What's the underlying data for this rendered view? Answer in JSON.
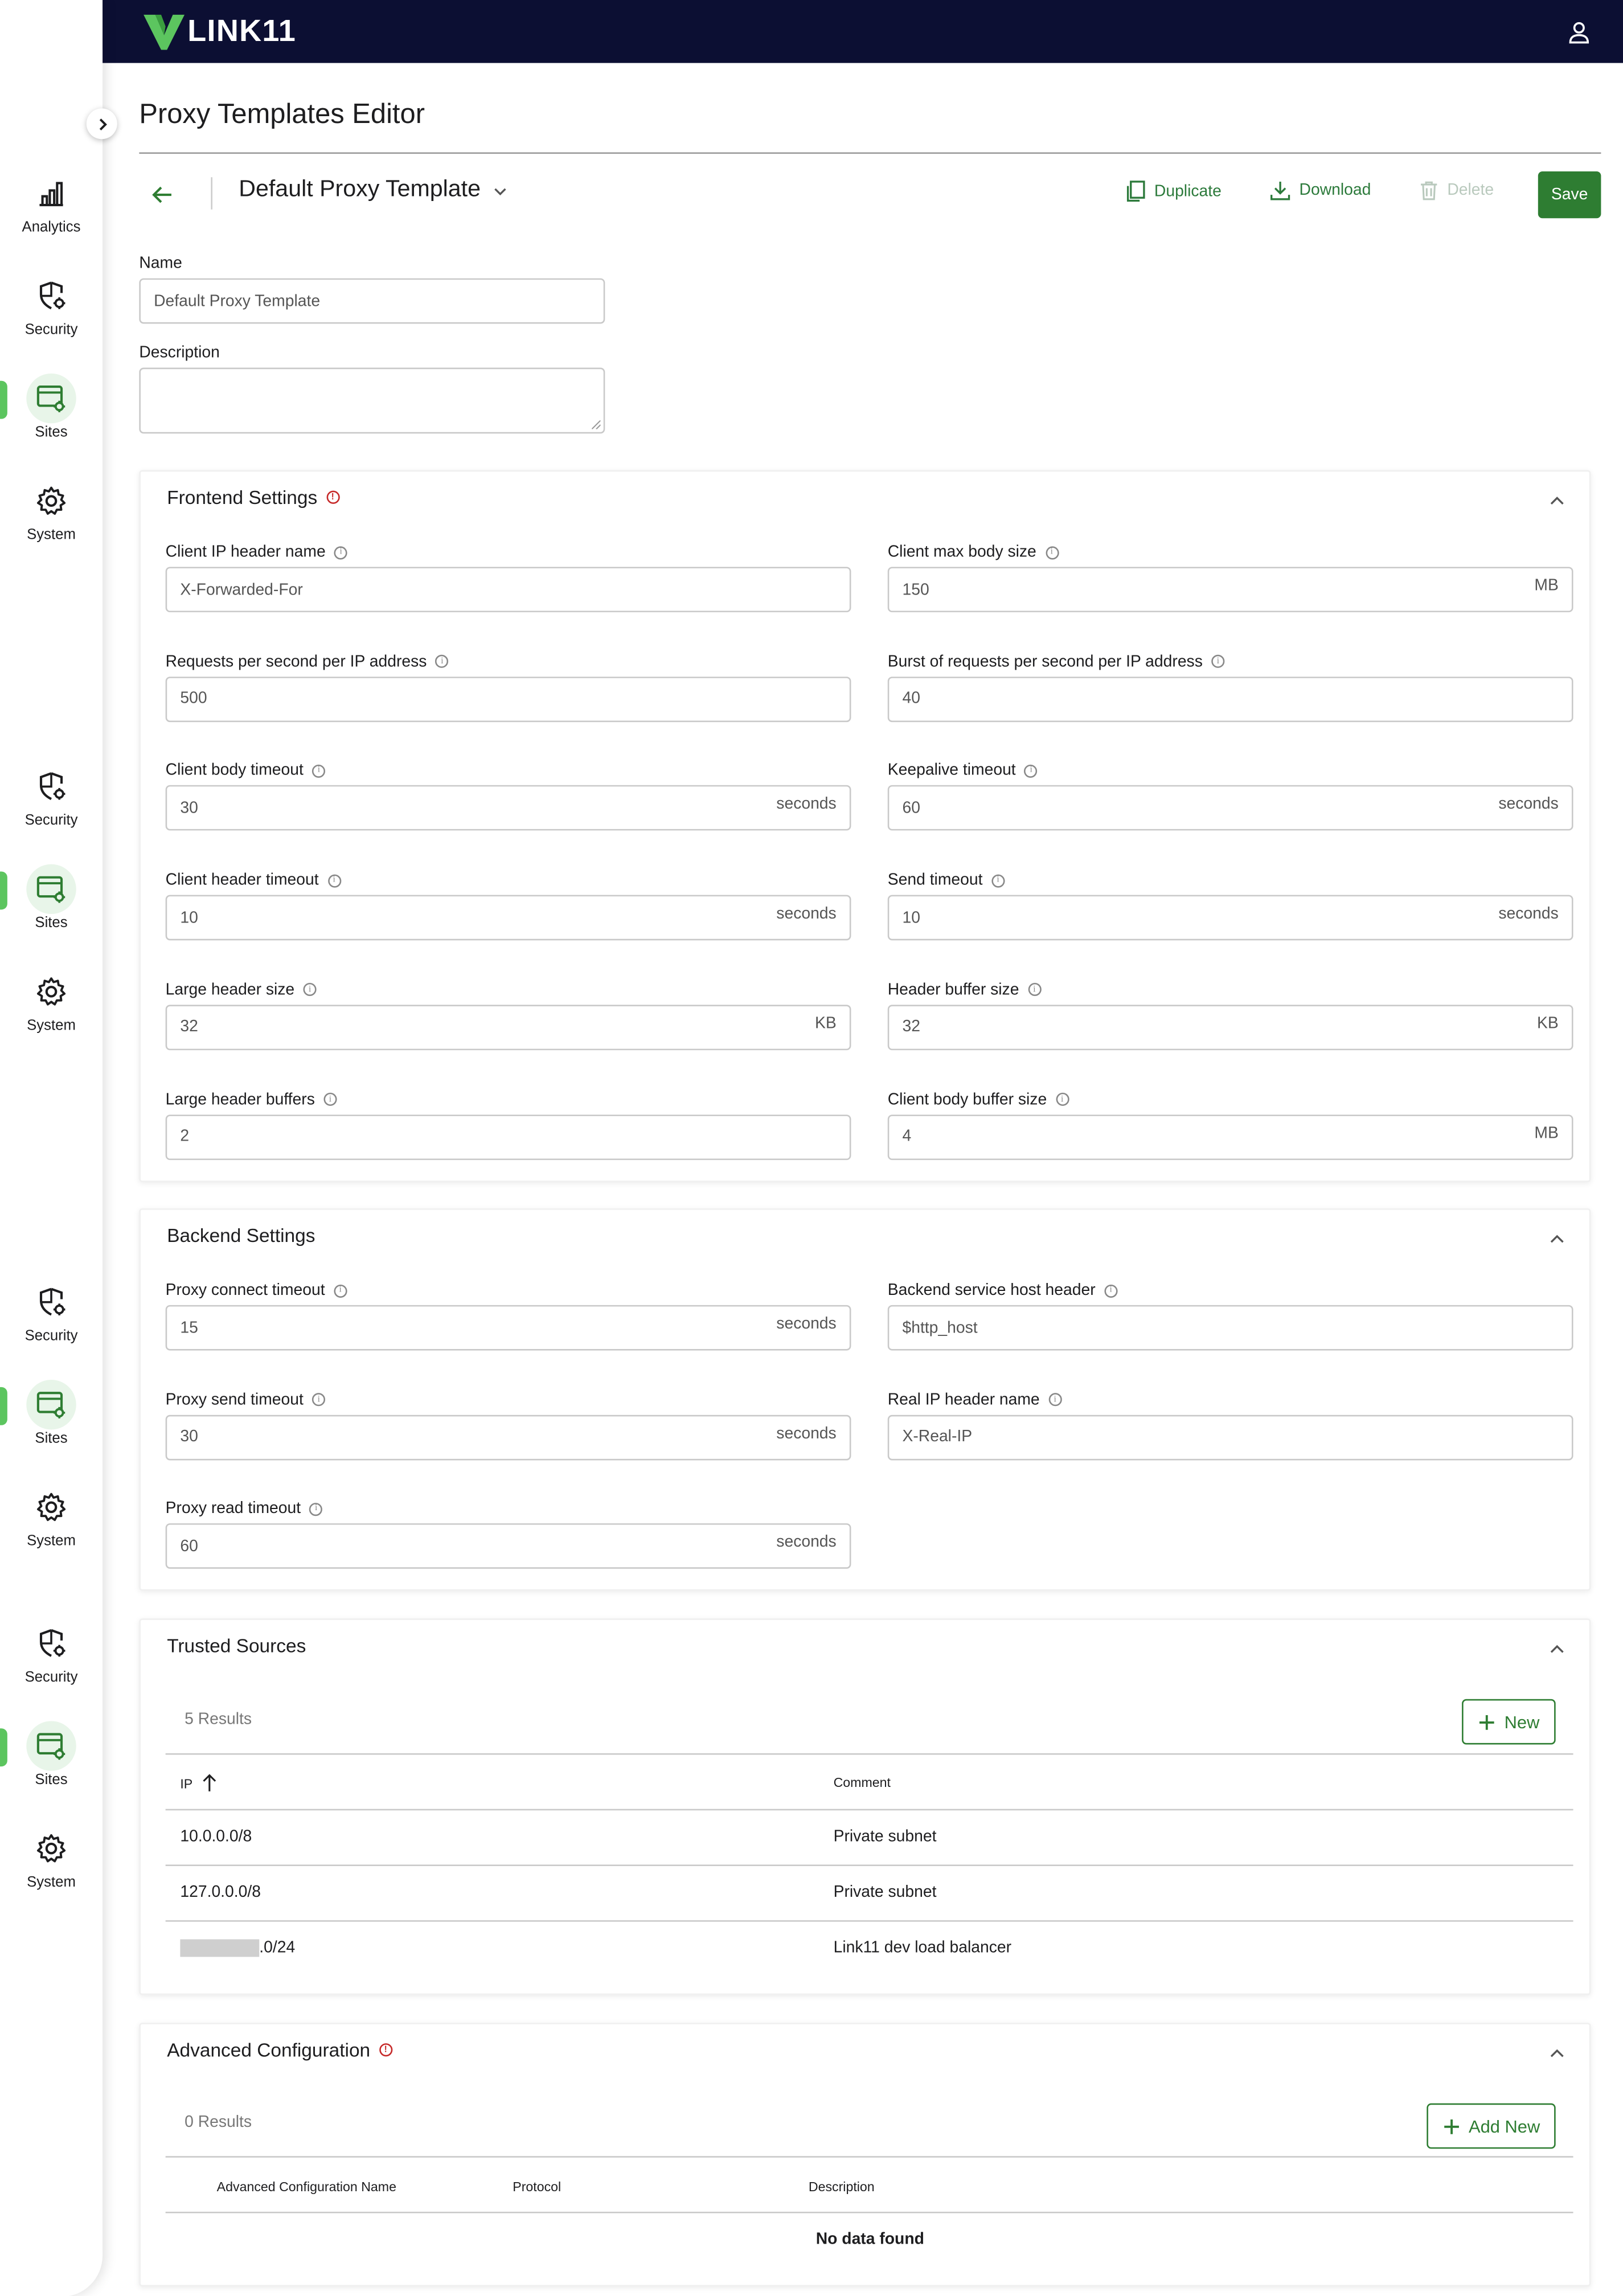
{
  "header": {
    "logo_text": "LINK11",
    "user_icon": "user-icon"
  },
  "sidebar": {
    "groups": [
      {
        "items": [
          {
            "label": "Analytics",
            "icon": "bar-chart-icon"
          },
          {
            "label": "Security",
            "icon": "shield-gear-icon"
          },
          {
            "label": "Sites",
            "icon": "sites-gear-icon",
            "active": true
          },
          {
            "label": "System",
            "icon": "gear-icon"
          }
        ]
      },
      {
        "items": [
          {
            "label": "Security",
            "icon": "shield-gear-icon"
          },
          {
            "label": "Sites",
            "icon": "sites-gear-icon",
            "active": true
          },
          {
            "label": "System",
            "icon": "gear-icon"
          }
        ]
      },
      {
        "items": [
          {
            "label": "Security",
            "icon": "shield-gear-icon"
          },
          {
            "label": "Sites",
            "icon": "sites-gear-icon",
            "active": true
          },
          {
            "label": "System",
            "icon": "gear-icon"
          }
        ]
      },
      {
        "items": [
          {
            "label": "Security",
            "icon": "shield-gear-icon"
          },
          {
            "label": "Sites",
            "icon": "sites-gear-icon",
            "active": true
          },
          {
            "label": "System",
            "icon": "gear-icon"
          }
        ]
      }
    ]
  },
  "page": {
    "title": "Proxy Templates Editor"
  },
  "toolbar": {
    "template_name": "Default Proxy Template",
    "duplicate_label": "Duplicate",
    "download_label": "Download",
    "delete_label": "Delete",
    "save_label": "Save"
  },
  "form": {
    "name_label": "Name",
    "name_value": "Default Proxy Template",
    "description_label": "Description",
    "description_value": ""
  },
  "frontend": {
    "title": "Frontend Settings",
    "fields": [
      {
        "label": "Client IP header name",
        "value": "X-Forwarded-For",
        "unit": ""
      },
      {
        "label": "Client max body size",
        "value": "150",
        "unit": "MB"
      },
      {
        "label": "Requests per second per IP address",
        "value": "500",
        "unit": ""
      },
      {
        "label": "Burst of requests per second per IP address",
        "value": "40",
        "unit": ""
      },
      {
        "label": "Client body timeout",
        "value": "30",
        "unit": "seconds"
      },
      {
        "label": "Keepalive timeout",
        "value": "60",
        "unit": "seconds"
      },
      {
        "label": "Client header timeout",
        "value": "10",
        "unit": "seconds"
      },
      {
        "label": "Send timeout",
        "value": "10",
        "unit": "seconds"
      },
      {
        "label": "Large header size",
        "value": "32",
        "unit": "KB"
      },
      {
        "label": "Header buffer size",
        "value": "32",
        "unit": "KB"
      },
      {
        "label": "Large header buffers",
        "value": "2",
        "unit": ""
      },
      {
        "label": "Client body buffer size",
        "value": "4",
        "unit": "MB"
      }
    ]
  },
  "backend": {
    "title": "Backend Settings",
    "fields": [
      {
        "label": "Proxy connect timeout",
        "value": "15",
        "unit": "seconds"
      },
      {
        "label": "Backend service host header",
        "value": "$http_host",
        "unit": ""
      },
      {
        "label": "Proxy send timeout",
        "value": "30",
        "unit": "seconds"
      },
      {
        "label": "Real IP header name",
        "value": "X-Real-IP",
        "unit": ""
      },
      {
        "label": "Proxy read timeout",
        "value": "60",
        "unit": "seconds"
      }
    ]
  },
  "trusted": {
    "title": "Trusted Sources",
    "results": "5 Results",
    "new_label": "New",
    "columns": {
      "ip": "IP",
      "comment": "Comment"
    },
    "rows": [
      {
        "ip": "10.0.0.0/8",
        "comment": "Private subnet"
      },
      {
        "ip": "127.0.0.0/8",
        "comment": "Private subnet"
      },
      {
        "ip": ".0/24",
        "comment": "Link11 dev load balancer"
      }
    ]
  },
  "advanced": {
    "title": "Advanced Configuration",
    "results": "0 Results",
    "new_label": "Add New",
    "columns": {
      "name": "Advanced Configuration Name",
      "protocol": "Protocol",
      "description": "Description"
    },
    "empty": "No data found"
  },
  "colors": {
    "brand_navy": "#0c0f33",
    "accent_green": "#2e7d32",
    "active_green": "#5cc55f",
    "warning_red": "#c62828"
  }
}
